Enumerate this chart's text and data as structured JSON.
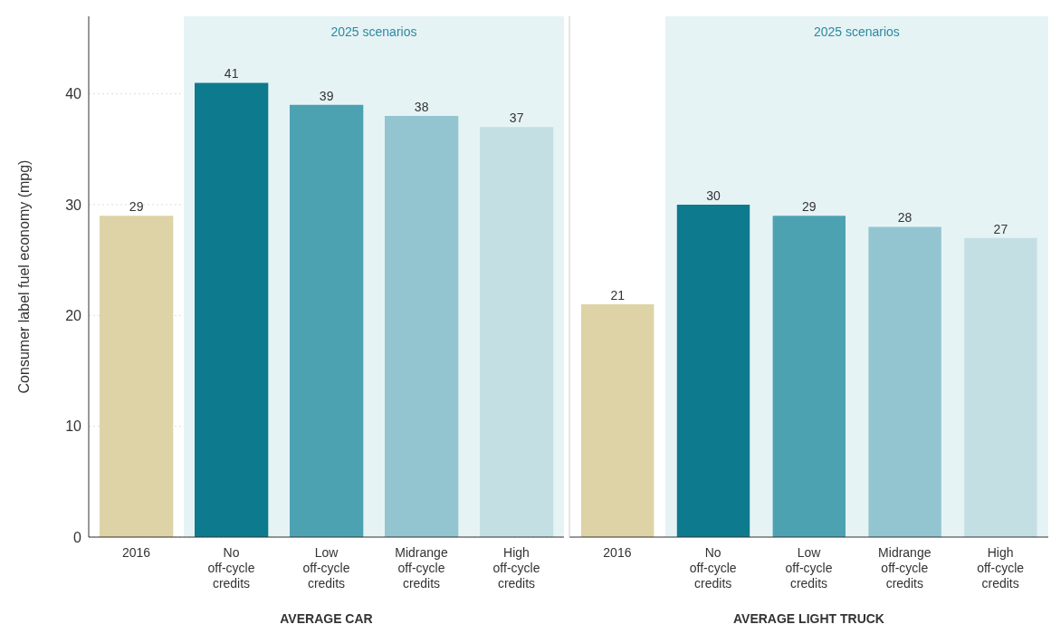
{
  "chart_data": [
    {
      "type": "bar",
      "categories": [
        "2016",
        "No off-cycle credits",
        "Low off-cycle credits",
        "Midrange off-cycle credits",
        "High off-cycle credits"
      ],
      "values": [
        29,
        41,
        39,
        38,
        37
      ],
      "colors": [
        "#ddd3a6",
        "#0e7a8d",
        "#4da2b2",
        "#93c5d0",
        "#c4dfe4"
      ],
      "ylim": [
        0,
        47
      ],
      "yticks": [
        0,
        10,
        20,
        30,
        40
      ],
      "ylabel": "Consumer label fuel economy (mpg)",
      "xlabel": "AVERAGE CAR",
      "data_labels": true,
      "grid": "y",
      "bands": [
        {
          "axis": "x",
          "from": "No off-cycle credits",
          "to": "High off-cycle credits",
          "label": "2025 scenarios",
          "color": "#e6f3f5"
        }
      ]
    },
    {
      "type": "bar",
      "categories": [
        "2016",
        "No off-cycle credits",
        "Low off-cycle credits",
        "Midrange off-cycle credits",
        "High off-cycle credits"
      ],
      "values": [
        21,
        30,
        29,
        28,
        27
      ],
      "colors": [
        "#ddd3a6",
        "#0e7a8d",
        "#4da2b2",
        "#93c5d0",
        "#c4dfe4"
      ],
      "ylim": [
        0,
        47
      ],
      "yticks": [
        0,
        10,
        20,
        30,
        40
      ],
      "xlabel": "AVERAGE LIGHT TRUCK",
      "data_labels": true,
      "grid": "y",
      "tick_labels": "x",
      "bands": [
        {
          "axis": "x",
          "from": "No off-cycle credits",
          "to": "High off-cycle credits",
          "label": "2025 scenarios",
          "color": "#e6f3f5"
        }
      ]
    }
  ]
}
